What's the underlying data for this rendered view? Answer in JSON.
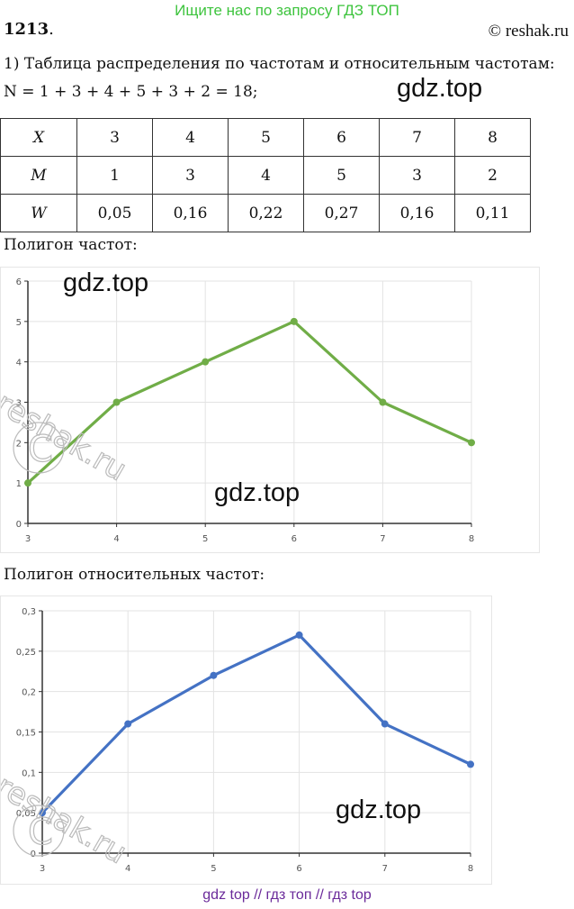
{
  "header": {
    "promo": "Ищите нас по запросу ГДЗ ТОП",
    "problem_number": "1213",
    "problem_dot": ".",
    "copyright": "© reshak.ru"
  },
  "intro": "1) Таблица распределения по частотам и относительным частотам:",
  "formula": "N = 1 + 3 + 4 + 5 + 3 + 2 = 18;",
  "watermarks": {
    "gdz": "gdz.top",
    "reshak": "reshak.ru"
  },
  "table": {
    "rows": [
      {
        "header": "X",
        "cells": [
          "3",
          "4",
          "5",
          "6",
          "7",
          "8"
        ]
      },
      {
        "header": "M",
        "cells": [
          "1",
          "3",
          "4",
          "5",
          "3",
          "2"
        ]
      },
      {
        "header": "W",
        "cells": [
          "0,05",
          "0,16",
          "0,22",
          "0,27",
          "0,16",
          "0,11"
        ]
      }
    ]
  },
  "chart1_caption": "Полигон частот:",
  "chart2_caption": "Полигон относительных частот:",
  "chart_data": [
    {
      "type": "line",
      "x": [
        3,
        4,
        5,
        6,
        7,
        8
      ],
      "y": [
        1,
        3,
        4,
        5,
        3,
        2
      ],
      "xticks": [
        "3",
        "4",
        "5",
        "6",
        "7",
        "8"
      ],
      "yticks": [
        "0",
        "1",
        "2",
        "3",
        "4",
        "5",
        "6"
      ],
      "ylim": [
        0,
        6
      ],
      "xlim": [
        3,
        8
      ],
      "grid": true,
      "color": "#70ad47"
    },
    {
      "type": "line",
      "x": [
        3,
        4,
        5,
        6,
        7,
        8
      ],
      "y": [
        0.05,
        0.16,
        0.22,
        0.27,
        0.16,
        0.11
      ],
      "xticks": [
        "3",
        "4",
        "5",
        "6",
        "7",
        "8"
      ],
      "yticks": [
        "0",
        "0,05",
        "0,1",
        "0,15",
        "0,2",
        "0,25",
        "0,3"
      ],
      "ylim": [
        0,
        0.3
      ],
      "xlim": [
        3,
        8
      ],
      "grid": true,
      "color": "#4472c4"
    }
  ],
  "footer": "gdz top  //  гдз топ  //  гдз top"
}
